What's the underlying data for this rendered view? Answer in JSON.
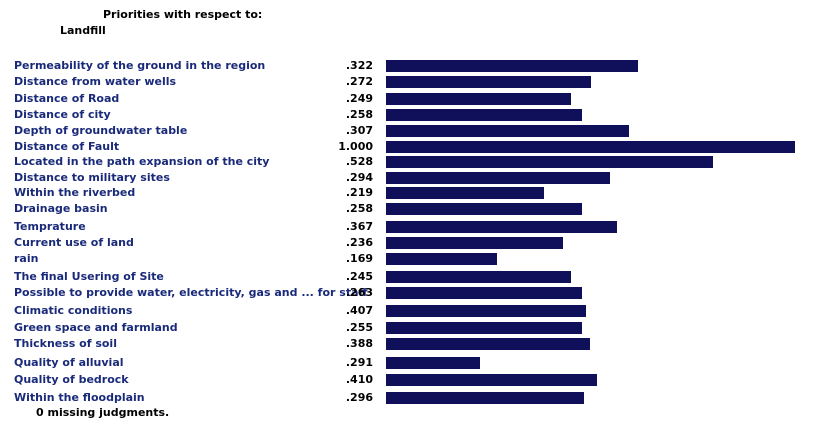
{
  "header": {
    "title": "Priorities with respect to:",
    "goal": "Landfill"
  },
  "colors": {
    "label": "#1a2a7a",
    "bar": "#10105a"
  },
  "chart_data": {
    "type": "bar",
    "categories": [
      "Permeability of the ground in the region",
      "Distance from water wells",
      "Distance of Road",
      "Distance of city",
      "Depth of groundwater table",
      "Distance of Fault",
      "Located in the path expansion of the city",
      "Distance to military sites",
      "Within the riverbed",
      "Drainage basin",
      "Temprature",
      "Current use of land",
      "rain",
      "The final Usering of Site",
      "Possible to provide water, electricity, gas and ... for staff",
      "Climatic conditions",
      "Green space and farmland",
      "Thickness of soil",
      "Quality of alluvial",
      "Quality of bedrock",
      "Within the floodplain"
    ],
    "value_labels": [
      ".322",
      ".272",
      ".249",
      ".258",
      ".307",
      "1.000",
      ".528",
      ".294",
      ".219",
      ".258",
      ".367",
      ".236",
      ".169",
      ".245",
      ".263",
      ".407",
      ".255",
      ".388",
      ".291",
      ".410",
      ".296"
    ],
    "bar_fractions": [
      0.617,
      0.502,
      0.453,
      0.478,
      0.595,
      1.0,
      0.799,
      0.548,
      0.386,
      0.478,
      0.566,
      0.433,
      0.271,
      0.453,
      0.478,
      0.488,
      0.478,
      0.499,
      0.229,
      0.515,
      0.483
    ]
  },
  "footer": {
    "missing_count": "0",
    "missing_text": "missing judgments."
  }
}
